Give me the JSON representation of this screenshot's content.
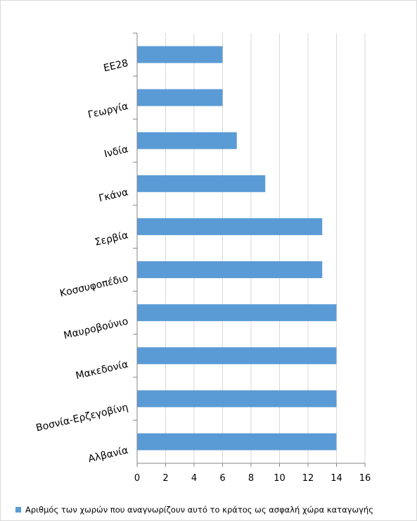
{
  "chart_data": {
    "type": "bar",
    "orientation": "horizontal",
    "categories": [
      "ΕΕ28",
      "Γεωργία",
      "Ινδία",
      "Γκάνα",
      "Σερβία",
      "Κοσσυφοπέδιο",
      "Μαυροβούνιο",
      "Μακεδονία",
      "Βοσνία-Ερζεγοβίνη",
      "Αλβανία"
    ],
    "series": [
      {
        "name": "Αριθμός των χωρών που αναγνωρίζουν αυτό το κράτος ως ασφαλή χώρα καταγωγής",
        "values": [
          6,
          6,
          7,
          9,
          13,
          13,
          14,
          14,
          14,
          14
        ]
      }
    ],
    "xlim": [
      0,
      16
    ],
    "xticks": [
      0,
      2,
      4,
      6,
      8,
      10,
      12,
      14,
      16
    ],
    "grid": true,
    "legend_position": "bottom",
    "bar_color": "#5b9bd5",
    "grid_color": "#d9d9d9"
  }
}
